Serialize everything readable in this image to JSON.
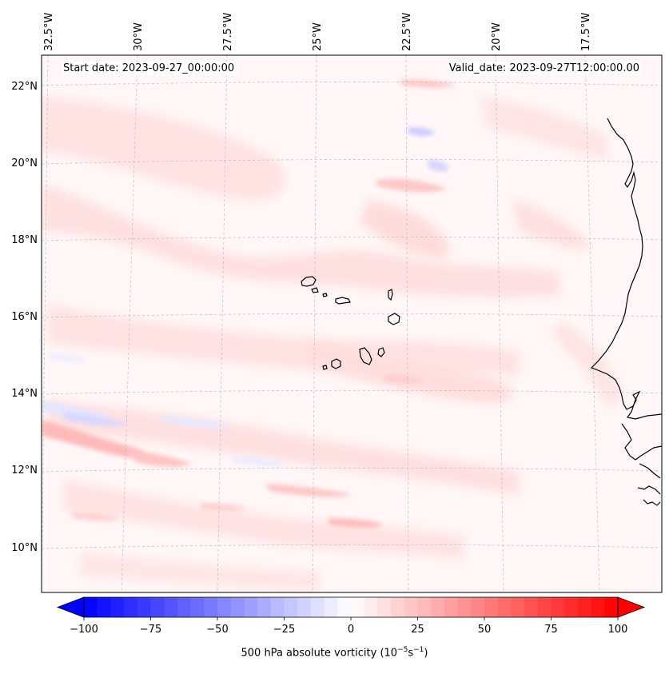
{
  "header": {
    "start_date": "Start date: 2023-09-27_00:00:00",
    "valid_date": "Valid_date: 2023-09-27T12:00:00.00"
  },
  "map": {
    "lon_ticks": [
      "32.5°W",
      "30°W",
      "27.5°W",
      "25°W",
      "22.5°W",
      "20°W",
      "17.5°W"
    ],
    "lat_ticks": [
      "22°N",
      "20°N",
      "18°N",
      "16°N",
      "14°N",
      "12°N",
      "10°N"
    ],
    "lon_range": [
      -32.5,
      -15.8
    ],
    "lat_range": [
      8.8,
      22.8
    ],
    "coastline_color": "#000000",
    "grid_color": "#bbbbbb"
  },
  "colorbar": {
    "label": "500 hPa absolute vorticity (10",
    "label_exp1": "−5",
    "label_mid": "s",
    "label_exp2": "−1",
    "label_end": ")",
    "ticks": [
      "−100",
      "−75",
      "−50",
      "−25",
      "0",
      "25",
      "50",
      "75",
      "100"
    ],
    "range": [
      -100,
      100
    ],
    "min_color": "#0000ff",
    "mid_color": "#ffffff",
    "max_color": "#ff0000",
    "extend": "both"
  }
}
